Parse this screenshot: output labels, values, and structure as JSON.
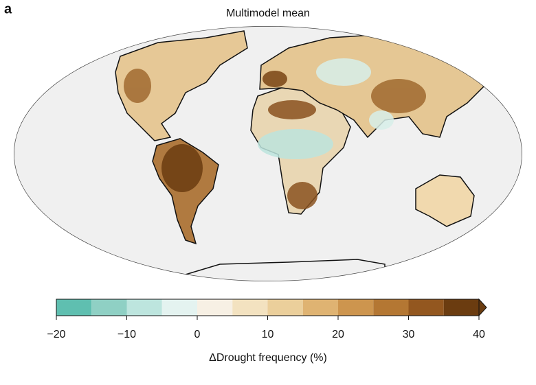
{
  "panel_label": "a",
  "title": "Multimodel mean",
  "colorbar": {
    "label": "ΔDrought frequency (%)",
    "xlim": [
      -20,
      40
    ],
    "xticks": [
      {
        "value": -20,
        "label": "−20"
      },
      {
        "value": -10,
        "label": "−10"
      },
      0,
      10,
      20,
      30,
      40
    ],
    "levels": [
      -20,
      -15,
      -10,
      -5,
      0,
      5,
      10,
      15,
      20,
      25,
      30,
      35,
      40
    ],
    "colors": [
      "#5fbfb0",
      "#8fd0c4",
      "#bde5de",
      "#e4f3f0",
      "#f7f0e4",
      "#f3e2c0",
      "#ebcf9b",
      "#dfb372",
      "#cd954e",
      "#b47733",
      "#93571f",
      "#6b3c10"
    ],
    "extend": "max"
  }
}
